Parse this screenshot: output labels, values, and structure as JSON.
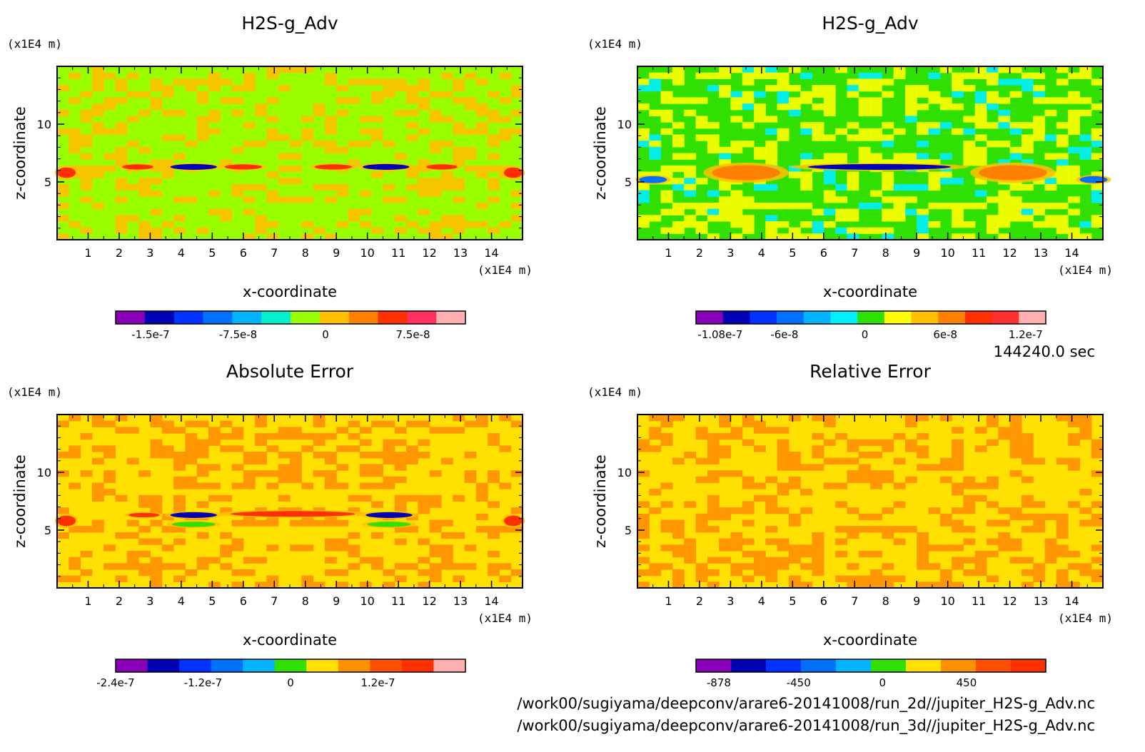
{
  "chart_data": [
    {
      "type": "heatmap",
      "title": "H2S-g_Adv",
      "xlabel": "x-coordinate",
      "ylabel": "z-coordinate",
      "x_unit": "(x1E4 m)",
      "y_unit": "(x1E4 m)",
      "xlim": [
        0,
        15
      ],
      "ylim": [
        0,
        15
      ],
      "x_ticks": [
        "1",
        "2",
        "3",
        "4",
        "5",
        "6",
        "7",
        "8",
        "9",
        "10",
        "11",
        "12",
        "13",
        "14"
      ],
      "y_ticks": [
        "5",
        "10"
      ],
      "colorbar": {
        "colors": [
          "#8a00b8",
          "#0000b4",
          "#0033ff",
          "#0070ff",
          "#00b4ff",
          "#00f0d0",
          "#99ff00",
          "#ffc000",
          "#ff8000",
          "#ff3000",
          "#ff3060",
          "#ffb0b0"
        ],
        "tick_labels": [
          "-1.5e-7",
          "-7.5e-8",
          "0",
          "7.5e-8"
        ],
        "tick_values": [
          -1.5e-07,
          -7.5e-08,
          0,
          7.5e-08
        ],
        "range": [
          -1.8e-07,
          1.2e-07
        ]
      },
      "background": "#99ff00",
      "features": [
        {
          "x": 0.3,
          "z": 5.8,
          "w": 0.6,
          "h": 0.9,
          "color": "#ff3000"
        },
        {
          "x": 2.6,
          "z": 6.3,
          "w": 1.0,
          "h": 0.45,
          "color": "#ff3000"
        },
        {
          "x": 4.4,
          "z": 6.3,
          "w": 1.5,
          "h": 0.5,
          "color": "#0000b4"
        },
        {
          "x": 6.0,
          "z": 6.3,
          "w": 1.2,
          "h": 0.45,
          "color": "#ff3000"
        },
        {
          "x": 8.9,
          "z": 6.3,
          "w": 1.2,
          "h": 0.45,
          "color": "#ff3000"
        },
        {
          "x": 10.6,
          "z": 6.3,
          "w": 1.5,
          "h": 0.5,
          "color": "#0000b4"
        },
        {
          "x": 12.4,
          "z": 6.3,
          "w": 1.0,
          "h": 0.45,
          "color": "#ff3000"
        },
        {
          "x": 14.7,
          "z": 5.8,
          "w": 0.6,
          "h": 0.9,
          "color": "#ff3000"
        }
      ]
    },
    {
      "type": "heatmap",
      "title": "H2S-g_Adv",
      "xlabel": "x-coordinate",
      "ylabel": "z-coordinate",
      "x_unit": "(x1E4 m)",
      "y_unit": "(x1E4 m)",
      "xlim": [
        0,
        15
      ],
      "ylim": [
        0,
        15
      ],
      "x_ticks": [
        "1",
        "2",
        "3",
        "4",
        "5",
        "6",
        "7",
        "8",
        "9",
        "10",
        "11",
        "12",
        "13",
        "14"
      ],
      "y_ticks": [
        "5",
        "10"
      ],
      "colorbar": {
        "colors": [
          "#8a00b8",
          "#0000b4",
          "#0033ff",
          "#0070ff",
          "#00b4ff",
          "#00f0ff",
          "#30e000",
          "#ffff00",
          "#ffc000",
          "#ff8000",
          "#ff3000",
          "#ff3030",
          "#ffb0b0"
        ],
        "tick_labels": [
          "-1.08e-7",
          "-6e-8",
          "0",
          "6e-8",
          "1.2e-7"
        ],
        "tick_values": [
          -1.08e-07,
          -6e-08,
          0,
          6e-08,
          1.2e-07
        ],
        "range": [
          -1.26e-07,
          1.35e-07
        ]
      },
      "background": "#30e000",
      "features": [
        {
          "x": 0.5,
          "z": 5.2,
          "w": 0.9,
          "h": 0.6,
          "color": "#0070ff"
        },
        {
          "x": 3.5,
          "z": 5.8,
          "w": 2.2,
          "h": 1.3,
          "color": "#ff8000"
        },
        {
          "x": 7.8,
          "z": 6.3,
          "w": 4.6,
          "h": 0.5,
          "color": "#0000b4"
        },
        {
          "x": 12.1,
          "z": 5.8,
          "w": 2.2,
          "h": 1.3,
          "color": "#ff8000"
        },
        {
          "x": 14.7,
          "z": 5.2,
          "w": 0.9,
          "h": 0.6,
          "color": "#0070ff"
        }
      ]
    },
    {
      "type": "heatmap",
      "title": "Absolute Error",
      "xlabel": "x-coordinate",
      "ylabel": "z-coordinate",
      "x_unit": "(x1E4 m)",
      "y_unit": "(x1E4 m)",
      "xlim": [
        0,
        15
      ],
      "ylim": [
        0,
        15
      ],
      "x_ticks": [
        "1",
        "2",
        "3",
        "4",
        "5",
        "6",
        "7",
        "8",
        "9",
        "10",
        "11",
        "12",
        "13",
        "14"
      ],
      "y_ticks": [
        "5",
        "10"
      ],
      "colorbar": {
        "colors": [
          "#8a00b8",
          "#0000b4",
          "#0033ff",
          "#0070ff",
          "#00b4ff",
          "#30e000",
          "#ffe000",
          "#ff9000",
          "#ff5000",
          "#ff3000",
          "#ffb0b0"
        ],
        "tick_labels": [
          "-2.4e-7",
          "-1.2e-7",
          "0",
          "1.2e-7"
        ],
        "tick_values": [
          -2.4e-07,
          -1.2e-07,
          0,
          1.2e-07
        ],
        "range": [
          -2.4e-07,
          2.4e-07
        ]
      },
      "background": "#ffe000",
      "features": [
        {
          "x": 0.3,
          "z": 5.8,
          "w": 0.6,
          "h": 0.9,
          "color": "#ff3000"
        },
        {
          "x": 2.8,
          "z": 6.3,
          "w": 1.0,
          "h": 0.4,
          "color": "#ff3000"
        },
        {
          "x": 4.4,
          "z": 6.3,
          "w": 1.5,
          "h": 0.5,
          "color": "#0000b4"
        },
        {
          "x": 4.4,
          "z": 5.5,
          "w": 1.4,
          "h": 0.45,
          "color": "#30e000"
        },
        {
          "x": 7.6,
          "z": 6.4,
          "w": 4.0,
          "h": 0.5,
          "color": "#ff3000"
        },
        {
          "x": 10.7,
          "z": 6.3,
          "w": 1.5,
          "h": 0.5,
          "color": "#0000b4"
        },
        {
          "x": 10.7,
          "z": 5.5,
          "w": 1.4,
          "h": 0.45,
          "color": "#30e000"
        },
        {
          "x": 14.7,
          "z": 5.8,
          "w": 0.6,
          "h": 0.9,
          "color": "#ff3000"
        }
      ]
    },
    {
      "type": "heatmap",
      "title": "Relative Error",
      "xlabel": "x-coordinate",
      "ylabel": "z-coordinate",
      "x_unit": "(x1E4 m)",
      "y_unit": "(x1E4 m)",
      "xlim": [
        0,
        15
      ],
      "ylim": [
        0,
        15
      ],
      "x_ticks": [
        "1",
        "2",
        "3",
        "4",
        "5",
        "6",
        "7",
        "8",
        "9",
        "10",
        "11",
        "12",
        "13",
        "14"
      ],
      "y_ticks": [
        "5",
        "10"
      ],
      "colorbar": {
        "colors": [
          "#8a00b8",
          "#0000b4",
          "#0033ff",
          "#0070ff",
          "#00b4ff",
          "#30e000",
          "#ffe000",
          "#ff9000",
          "#ff5000",
          "#ff3000"
        ],
        "tick_labels": [
          "-878",
          "-450",
          "0",
          "450"
        ],
        "tick_values": [
          -878,
          -450,
          0,
          450
        ],
        "range": [
          -1000,
          875
        ]
      },
      "background": "#ffe000",
      "features": []
    }
  ],
  "time_label": "144240.0 sec",
  "footer_lines": [
    "/work00/sugiyama/deepconv/arare6-20141008/run_2d//jupiter_H2S-g_Adv.nc",
    "/work00/sugiyama/deepconv/arare6-20141008/run_3d//jupiter_H2S-g_Adv.nc"
  ]
}
